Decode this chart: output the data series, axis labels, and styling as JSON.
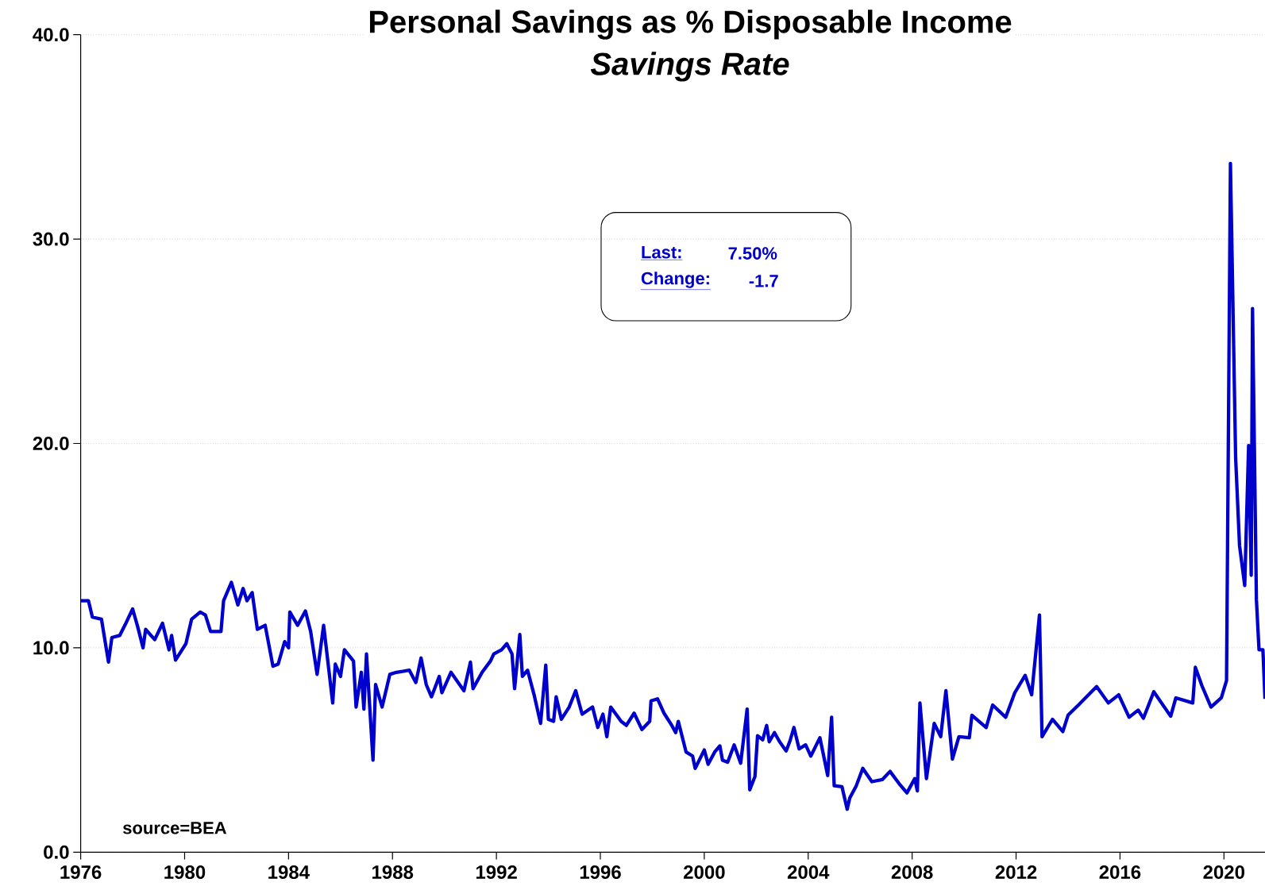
{
  "chart_data": {
    "type": "line",
    "title": "Personal Savings as % Disposable Income",
    "subtitle": "*Savings Rate*",
    "color": "#0000cc",
    "grid": "y",
    "xlim": [
      1976,
      2021.58
    ],
    "ylim": [
      0,
      40
    ],
    "xticks": [
      1976,
      1980,
      1984,
      1988,
      1992,
      1996,
      2000,
      2004,
      2008,
      2012,
      2016,
      2020
    ],
    "yticks": [
      {
        "value": 0,
        "label": "0.0"
      },
      {
        "value": 10,
        "label": "10.0"
      },
      {
        "value": 20,
        "label": "20.0"
      },
      {
        "value": 30,
        "label": "30.0"
      },
      {
        "value": 40,
        "label": "40.0"
      }
    ],
    "annotations": [
      "source=BEA",
      "Last:",
      "7.50%",
      "Change:",
      "-1.7"
    ],
    "x": [
      1976.0,
      1976.3,
      1976.45,
      1976.8,
      1977.07,
      1977.2,
      1977.5,
      1977.7,
      1978.0,
      1978.2,
      1978.4,
      1978.5,
      1978.85,
      1979.15,
      1979.4,
      1979.5,
      1979.65,
      1980.05,
      1980.27,
      1980.6,
      1980.8,
      1981.0,
      1981.4,
      1981.5,
      1981.8,
      1982.05,
      1982.25,
      1982.4,
      1982.6,
      1982.8,
      1983.1,
      1983.4,
      1983.6,
      1983.85,
      1984.0,
      1984.05,
      1984.35,
      1984.65,
      1984.85,
      1985.1,
      1985.35,
      1985.7,
      1985.8,
      1986.0,
      1986.15,
      1986.5,
      1986.6,
      1986.8,
      1986.9,
      1987.0,
      1987.25,
      1987.35,
      1987.6,
      1987.9,
      1988.15,
      1988.65,
      1988.9,
      1989.1,
      1989.3,
      1989.5,
      1989.8,
      1989.9,
      1990.25,
      1990.75,
      1991.0,
      1991.1,
      1991.45,
      1991.77,
      1991.9,
      1992.2,
      1992.4,
      1992.6,
      1992.7,
      1992.9,
      1993.0,
      1993.2,
      1993.45,
      1993.7,
      1993.9,
      1994.0,
      1994.2,
      1994.3,
      1994.5,
      1994.8,
      1995.05,
      1995.3,
      1995.7,
      1995.9,
      1996.1,
      1996.25,
      1996.4,
      1996.8,
      1997.0,
      1997.3,
      1997.6,
      1997.9,
      1997.95,
      1998.2,
      1998.45,
      1998.75,
      1998.9,
      1999.0,
      1999.3,
      1999.55,
      1999.65,
      2000.0,
      2000.15,
      2000.4,
      2000.6,
      2000.7,
      2000.9,
      2001.15,
      2001.4,
      2001.65,
      2001.75,
      2001.95,
      2002.05,
      2002.25,
      2002.4,
      2002.5,
      2002.7,
      2002.9,
      2003.15,
      2003.3,
      2003.45,
      2003.65,
      2003.9,
      2004.1,
      2004.45,
      2004.75,
      2004.9,
      2005.0,
      2005.3,
      2005.5,
      2005.6,
      2005.85,
      2006.1,
      2006.45,
      2006.85,
      2007.15,
      2007.5,
      2007.8,
      2008.1,
      2008.2,
      2008.3,
      2008.55,
      2008.85,
      2009.1,
      2009.3,
      2009.55,
      2009.8,
      2010.2,
      2010.3,
      2010.85,
      2011.1,
      2011.6,
      2011.95,
      2012.35,
      2012.6,
      2012.9,
      2013.0,
      2013.4,
      2013.8,
      2014.0,
      2014.4,
      2015.1,
      2015.55,
      2015.95,
      2016.35,
      2016.7,
      2016.9,
      2017.3,
      2017.95,
      2018.15,
      2018.8,
      2018.9,
      2019.15,
      2019.5,
      2019.9,
      2020.1,
      2020.25,
      2020.45,
      2020.6,
      2020.8,
      2020.95,
      2021.05,
      2021.1,
      2021.25,
      2021.35,
      2021.5,
      2021.58
    ],
    "values": [
      12.3,
      12.3,
      11.5,
      11.4,
      9.3,
      10.5,
      10.6,
      11.1,
      11.9,
      11.0,
      10.0,
      10.9,
      10.4,
      11.2,
      9.9,
      10.6,
      9.4,
      10.2,
      11.4,
      11.75,
      11.6,
      10.8,
      10.8,
      12.3,
      13.2,
      12.1,
      12.9,
      12.3,
      12.7,
      10.9,
      11.1,
      9.1,
      9.2,
      10.3,
      10.0,
      11.75,
      11.1,
      11.8,
      10.8,
      8.7,
      11.1,
      7.3,
      9.2,
      8.6,
      9.9,
      9.35,
      7.1,
      8.8,
      7.0,
      9.7,
      4.5,
      8.2,
      7.1,
      8.7,
      8.8,
      8.9,
      8.3,
      9.5,
      8.2,
      7.6,
      8.6,
      7.8,
      8.8,
      7.9,
      9.3,
      8.0,
      8.8,
      9.35,
      9.7,
      9.9,
      10.2,
      9.7,
      8.0,
      10.65,
      8.6,
      8.9,
      7.7,
      6.3,
      9.15,
      6.5,
      6.4,
      7.6,
      6.5,
      7.1,
      7.9,
      6.75,
      7.1,
      6.1,
      6.75,
      5.65,
      7.1,
      6.4,
      6.2,
      6.8,
      6.0,
      6.4,
      7.4,
      7.5,
      6.8,
      6.2,
      5.85,
      6.4,
      4.9,
      4.7,
      4.1,
      5.0,
      4.3,
      4.9,
      5.2,
      4.5,
      4.4,
      5.25,
      4.35,
      7.0,
      3.05,
      3.7,
      5.7,
      5.5,
      6.2,
      5.4,
      5.85,
      5.4,
      4.95,
      5.45,
      6.1,
      5.05,
      5.25,
      4.7,
      5.6,
      3.75,
      6.6,
      3.25,
      3.2,
      2.1,
      2.65,
      3.25,
      4.1,
      3.45,
      3.55,
      3.95,
      3.35,
      2.9,
      3.6,
      3.0,
      7.3,
      3.6,
      6.3,
      5.65,
      7.9,
      4.55,
      5.65,
      5.6,
      6.7,
      6.1,
      7.2,
      6.6,
      7.8,
      8.65,
      7.7,
      11.6,
      5.65,
      6.5,
      5.9,
      6.7,
      7.2,
      8.1,
      7.3,
      7.7,
      6.6,
      6.95,
      6.55,
      7.85,
      6.65,
      7.55,
      7.3,
      9.05,
      8.15,
      7.1,
      7.55,
      8.4,
      33.7,
      19.3,
      15.0,
      13.05,
      19.9,
      13.55,
      26.6,
      12.35,
      9.9,
      9.9,
      7.5
    ]
  }
}
